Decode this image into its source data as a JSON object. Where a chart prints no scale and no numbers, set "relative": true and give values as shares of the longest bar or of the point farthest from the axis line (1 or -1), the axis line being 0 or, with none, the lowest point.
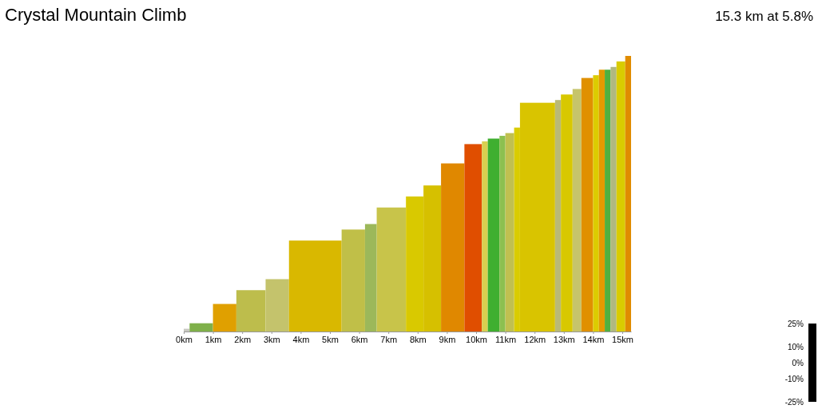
{
  "chart_data": {
    "type": "bar",
    "title": "Crystal Mountain Climb",
    "subtitle": "15.3 km at 5.8%",
    "relative": true,
    "x": [
      0.1,
      0.6,
      1.4,
      2.3,
      3.2,
      4.5,
      5.8,
      6.4,
      7.1,
      7.9,
      8.5,
      9.2,
      9.9,
      10.3,
      10.6,
      10.9,
      11.15,
      11.4,
      12.1,
      12.8,
      13.1,
      13.45,
      13.8,
      14.1,
      14.3,
      14.5,
      14.7,
      14.95,
      15.2
    ],
    "values": [
      0.01,
      0.03,
      0.1,
      0.15,
      0.19,
      0.33,
      0.37,
      0.39,
      0.45,
      0.49,
      0.53,
      0.61,
      0.68,
      0.69,
      0.7,
      0.71,
      0.72,
      0.74,
      0.83,
      0.84,
      0.86,
      0.88,
      0.92,
      0.93,
      0.95,
      0.95,
      0.96,
      0.98,
      1
    ],
    "colors": [
      "#c8c8c0",
      "#7fb04a",
      "#e0a000",
      "#bdbd4c",
      "#c4c36c",
      "#d9b800",
      "#c0bf48",
      "#9cb85a",
      "#c8c44a",
      "#d9c900",
      "#d6c000",
      "#e08800",
      "#e04e00",
      "#d8d050",
      "#3faf30",
      "#8cc050",
      "#c0c050",
      "#d9cc00",
      "#d9c400",
      "#b9b976",
      "#d8c800",
      "#c6c46a",
      "#e09000",
      "#dccc00",
      "#e39a00",
      "#4fb040",
      "#b0b880",
      "#d9cc00",
      "#e08c00"
    ],
    "xlim": [
      0,
      15.3
    ],
    "xticks": [
      {
        "value": 0,
        "label": "0km"
      },
      {
        "value": 1,
        "label": "1km"
      },
      {
        "value": 2,
        "label": "2km"
      },
      {
        "value": 3,
        "label": "3km"
      },
      {
        "value": 4,
        "label": "4km"
      },
      {
        "value": 5,
        "label": "5km"
      },
      {
        "value": 6,
        "label": "6km"
      },
      {
        "value": 7,
        "label": "7km"
      },
      {
        "value": 8,
        "label": "8km"
      },
      {
        "value": 9,
        "label": "9km"
      },
      {
        "value": 10,
        "label": "10km"
      },
      {
        "value": 11,
        "label": "11km"
      },
      {
        "value": 12,
        "label": "12km"
      },
      {
        "value": 13,
        "label": "13km"
      },
      {
        "value": 14,
        "label": "14km"
      },
      {
        "value": 15,
        "label": "15km"
      }
    ],
    "annotations": [
      "25%",
      "10%",
      "0%",
      "-10%",
      "-25%"
    ]
  }
}
